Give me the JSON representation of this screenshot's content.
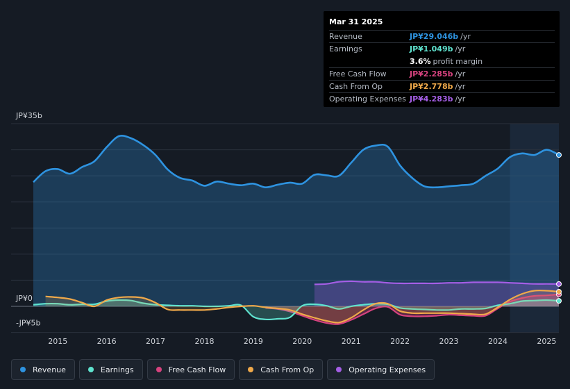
{
  "tooltip": {
    "date": "Mar 31 2025",
    "rows": [
      {
        "label": "Revenue",
        "value": "JP¥29.046b",
        "unit": "/yr",
        "color": "#2e93e0"
      },
      {
        "label": "Earnings",
        "value": "JP¥1.049b",
        "unit": "/yr",
        "color": "#5fe3cf"
      },
      {
        "label": "",
        "value": "3.6%",
        "unit": "profit margin",
        "color": "#ffffff"
      },
      {
        "label": "Free Cash Flow",
        "value": "JP¥2.285b",
        "unit": "/yr",
        "color": "#d6427e"
      },
      {
        "label": "Cash From Op",
        "value": "JP¥2.778b",
        "unit": "/yr",
        "color": "#f0a94a"
      },
      {
        "label": "Operating Expenses",
        "value": "JP¥4.283b",
        "unit": "/yr",
        "color": "#a45ee5"
      }
    ]
  },
  "legend": [
    {
      "label": "Revenue",
      "color": "#2e93e0"
    },
    {
      "label": "Earnings",
      "color": "#5fe3cf"
    },
    {
      "label": "Free Cash Flow",
      "color": "#d6427e"
    },
    {
      "label": "Cash From Op",
      "color": "#f0a94a"
    },
    {
      "label": "Operating Expenses",
      "color": "#a45ee5"
    }
  ],
  "chart_data": {
    "type": "area",
    "title": "",
    "xlabel": "",
    "ylabel": "",
    "currency_unit": "JP¥ billions",
    "y_tick_labels": [
      {
        "label": "JP¥35b",
        "value": 35
      },
      {
        "label": "JP¥0",
        "value": 0
      },
      {
        "label": "-JP¥5b",
        "value": -5
      }
    ],
    "ylim": [
      -5,
      35
    ],
    "xlim": [
      2014.5,
      2025.25
    ],
    "x_tick_labels": [
      "2015",
      "2016",
      "2017",
      "2018",
      "2019",
      "2020",
      "2021",
      "2022",
      "2023",
      "2024",
      "2025"
    ],
    "forecast_shade_start": 2024.25,
    "series": [
      {
        "name": "Revenue",
        "color": "#2e93e0",
        "fill": true,
        "x": [
          2014.5,
          2014.75,
          2015.0,
          2015.25,
          2015.5,
          2015.75,
          2016.0,
          2016.25,
          2016.5,
          2016.75,
          2017.0,
          2017.25,
          2017.5,
          2017.75,
          2018.0,
          2018.25,
          2018.5,
          2018.75,
          2019.0,
          2019.25,
          2019.5,
          2019.75,
          2020.0,
          2020.25,
          2020.5,
          2020.75,
          2021.0,
          2021.25,
          2021.5,
          2021.75,
          2022.0,
          2022.25,
          2022.5,
          2022.75,
          2023.0,
          2023.25,
          2023.5,
          2023.75,
          2024.0,
          2024.25,
          2024.5,
          2024.75,
          2025.0,
          2025.25
        ],
        "values": [
          23.8,
          25.9,
          26.3,
          25.4,
          26.7,
          27.8,
          30.5,
          32.6,
          32.2,
          30.9,
          29.0,
          26.2,
          24.6,
          24.1,
          23.1,
          23.9,
          23.5,
          23.2,
          23.5,
          22.8,
          23.3,
          23.7,
          23.5,
          25.2,
          25.1,
          25.0,
          27.5,
          30.0,
          30.8,
          30.6,
          27.0,
          24.6,
          23.0,
          22.8,
          23.0,
          23.2,
          23.5,
          25.0,
          26.4,
          28.6,
          29.3,
          29.0,
          30.0,
          29.0
        ]
      },
      {
        "name": "Earnings",
        "color": "#5fe3cf",
        "fill": true,
        "x": [
          2014.5,
          2014.75,
          2015.0,
          2015.25,
          2015.5,
          2015.75,
          2016.0,
          2016.25,
          2016.5,
          2016.75,
          2017.0,
          2017.25,
          2017.5,
          2017.75,
          2018.0,
          2018.25,
          2018.5,
          2018.75,
          2019.0,
          2019.25,
          2019.5,
          2019.75,
          2020.0,
          2020.25,
          2020.5,
          2020.75,
          2021.0,
          2021.25,
          2021.5,
          2021.75,
          2022.0,
          2022.25,
          2022.5,
          2022.75,
          2023.0,
          2023.25,
          2023.5,
          2023.75,
          2024.0,
          2024.25,
          2024.5,
          2024.75,
          2025.0,
          2025.25
        ],
        "values": [
          0.3,
          0.5,
          0.5,
          0.3,
          0.4,
          0.4,
          1.0,
          1.2,
          1.1,
          0.6,
          0.3,
          0.2,
          0.1,
          0.1,
          0.0,
          0.0,
          0.1,
          0.2,
          -2.0,
          -2.5,
          -2.4,
          -2.1,
          0.1,
          0.4,
          0.1,
          -0.5,
          0.0,
          0.3,
          0.5,
          0.4,
          -0.3,
          -0.5,
          -0.6,
          -0.7,
          -0.7,
          -0.5,
          -0.5,
          -0.4,
          0.2,
          0.5,
          1.0,
          1.1,
          1.2,
          1.05
        ]
      },
      {
        "name": "Free Cash Flow",
        "color": "#d6427e",
        "fill": true,
        "x": [
          2019.25,
          2019.5,
          2019.75,
          2020.0,
          2020.25,
          2020.5,
          2020.75,
          2021.0,
          2021.25,
          2021.5,
          2021.75,
          2022.0,
          2022.25,
          2022.5,
          2022.75,
          2023.0,
          2023.25,
          2023.5,
          2023.75,
          2024.0,
          2024.25,
          2024.5,
          2024.75,
          2025.0,
          2025.25
        ],
        "values": [
          -0.3,
          -0.5,
          -1.0,
          -1.8,
          -2.6,
          -3.2,
          -3.4,
          -2.6,
          -1.5,
          -0.4,
          -0.1,
          -1.6,
          -1.9,
          -1.9,
          -1.8,
          -1.6,
          -1.7,
          -1.8,
          -1.8,
          -0.4,
          0.9,
          1.6,
          2.0,
          2.1,
          2.3
        ]
      },
      {
        "name": "Cash From Op",
        "color": "#f0a94a",
        "fill": true,
        "x": [
          2014.75,
          2015.0,
          2015.25,
          2015.5,
          2015.75,
          2016.0,
          2016.25,
          2016.5,
          2016.75,
          2017.0,
          2017.25,
          2017.5,
          2017.75,
          2018.0,
          2018.25,
          2018.5,
          2018.75,
          2019.0,
          2019.25,
          2019.5,
          2019.75,
          2020.0,
          2020.25,
          2020.5,
          2020.75,
          2021.0,
          2021.25,
          2021.5,
          2021.75,
          2022.0,
          2022.25,
          2022.5,
          2022.75,
          2023.0,
          2023.25,
          2023.5,
          2023.75,
          2024.0,
          2024.25,
          2024.5,
          2024.75,
          2025.0,
          2025.25
        ],
        "values": [
          1.9,
          1.7,
          1.4,
          0.7,
          0.0,
          1.2,
          1.7,
          1.8,
          1.6,
          0.7,
          -0.6,
          -0.7,
          -0.7,
          -0.7,
          -0.5,
          -0.2,
          0.0,
          0.1,
          -0.2,
          -0.4,
          -0.7,
          -1.5,
          -2.2,
          -2.8,
          -3.1,
          -2.2,
          -0.7,
          0.5,
          0.5,
          -0.9,
          -1.3,
          -1.3,
          -1.3,
          -1.3,
          -1.4,
          -1.5,
          -1.5,
          -0.2,
          1.3,
          2.4,
          3.0,
          3.0,
          2.8
        ]
      },
      {
        "name": "Operating Expenses",
        "color": "#a45ee5",
        "fill": true,
        "x": [
          2020.25,
          2020.5,
          2020.75,
          2021.0,
          2021.25,
          2021.5,
          2021.75,
          2022.0,
          2022.25,
          2022.5,
          2022.75,
          2023.0,
          2023.25,
          2023.5,
          2023.75,
          2024.0,
          2024.25,
          2024.5,
          2024.75,
          2025.0,
          2025.25
        ],
        "values": [
          4.2,
          4.3,
          4.7,
          4.8,
          4.7,
          4.7,
          4.5,
          4.4,
          4.4,
          4.4,
          4.4,
          4.5,
          4.5,
          4.6,
          4.6,
          4.6,
          4.5,
          4.4,
          4.3,
          4.3,
          4.28
        ]
      }
    ]
  }
}
